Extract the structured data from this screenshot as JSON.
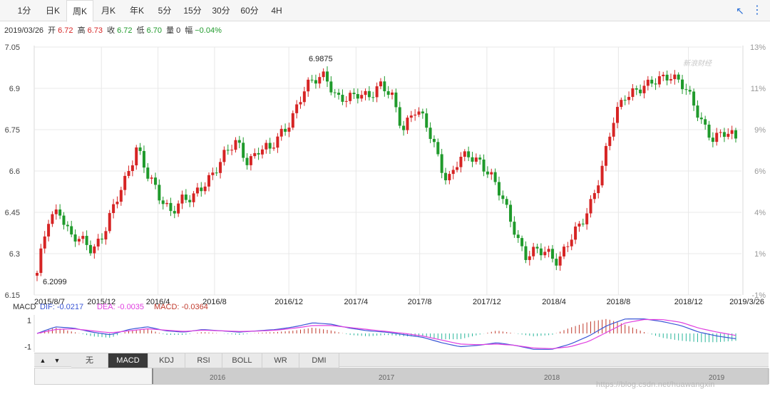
{
  "tabs": [
    {
      "label": "1分",
      "active": false
    },
    {
      "label": "日K",
      "active": false
    },
    {
      "label": "周K",
      "active": true
    },
    {
      "label": "月K",
      "active": false
    },
    {
      "label": "年K",
      "active": false
    },
    {
      "label": "5分",
      "active": false
    },
    {
      "label": "15分",
      "active": false
    },
    {
      "label": "30分",
      "active": false
    },
    {
      "label": "60分",
      "active": false
    },
    {
      "label": "4H",
      "active": false
    }
  ],
  "quote": {
    "date": "2019/03/26",
    "open_label": "开",
    "open": "6.72",
    "high_label": "高",
    "high": "6.73",
    "close_label": "收",
    "close": "6.72",
    "low_label": "低",
    "low": "6.70",
    "volume_label": "量",
    "volume": "0",
    "change_label": "幅",
    "change": "−0.04%"
  },
  "colors": {
    "up": "#d62424",
    "down": "#1f9a2b",
    "grid": "#e8e8e8",
    "dif": "#3a56d6",
    "dea": "#e03fe0",
    "macd_up": "#c0392b",
    "macd_down": "#28b59a"
  },
  "sina_mark": "新浪财经",
  "chart_data": {
    "type": "candlestick",
    "left_axis": {
      "ylim": [
        6.15,
        7.05
      ],
      "ticks": [
        "7.05",
        "6.9",
        "6.75",
        "6.6",
        "6.45",
        "6.3",
        "6.15"
      ]
    },
    "right_axis": {
      "ticks": [
        "13%",
        "11%",
        "9%",
        "6%",
        "4%",
        "1%",
        "-1%"
      ]
    },
    "x_ticks": [
      "2015/8/7",
      "2015/12",
      "2016/4",
      "2016/8",
      "2016/12",
      "2017/4",
      "2017/8",
      "2017/12",
      "2018/4",
      "2018/8",
      "2018/12",
      "2019/3/26"
    ],
    "x_tick_pos": [
      0.0,
      0.095,
      0.175,
      0.255,
      0.36,
      0.455,
      0.545,
      0.64,
      0.735,
      0.826,
      0.925,
      0.985
    ],
    "annotations": [
      {
        "label": "6.9875",
        "value": 6.9875
      },
      {
        "label": "6.2099",
        "value": 6.2099
      }
    ],
    "close_path": [
      6.22,
      6.42,
      6.47,
      6.36,
      6.34,
      6.32,
      6.38,
      6.47,
      6.57,
      6.7,
      6.58,
      6.5,
      6.46,
      6.5,
      6.49,
      6.55,
      6.61,
      6.66,
      6.7,
      6.64,
      6.68,
      6.67,
      6.74,
      6.8,
      6.88,
      6.93,
      6.96,
      6.86,
      6.85,
      6.89,
      6.88,
      6.9,
      6.87,
      6.76,
      6.82,
      6.77,
      6.68,
      6.56,
      6.63,
      6.66,
      6.64,
      6.57,
      6.49,
      6.4,
      6.29,
      6.3,
      6.31,
      6.28,
      6.34,
      6.4,
      6.5,
      6.62,
      6.78,
      6.88,
      6.9,
      6.9,
      6.93,
      6.96,
      6.92,
      6.85,
      6.78,
      6.72,
      6.73,
      6.72
    ],
    "macd": {
      "label": "MACD",
      "dif_label": "DIF:",
      "dif": "-0.0217",
      "dea_label": "DEA:",
      "dea": "-0.0035",
      "macd_label": "MACD:",
      "macd_value": "-0.0364",
      "y_ticks": [
        "1",
        "-1"
      ],
      "ylim": [
        -1.4,
        1.4
      ],
      "dif_path": [
        0.0,
        0.5,
        0.4,
        0.1,
        -0.1,
        0.3,
        0.5,
        0.2,
        0.1,
        0.3,
        0.2,
        0.1,
        0.2,
        0.3,
        0.5,
        0.8,
        0.7,
        0.4,
        0.2,
        0.1,
        -0.1,
        -0.3,
        -0.7,
        -1.0,
        -0.9,
        -0.7,
        -0.9,
        -1.2,
        -1.2,
        -0.8,
        -0.2,
        0.6,
        1.1,
        1.1,
        0.9,
        0.6,
        0.1,
        -0.2,
        -0.4
      ],
      "dea_path": [
        0.0,
        0.3,
        0.35,
        0.2,
        0.05,
        0.2,
        0.35,
        0.25,
        0.15,
        0.25,
        0.2,
        0.15,
        0.18,
        0.25,
        0.4,
        0.6,
        0.6,
        0.45,
        0.3,
        0.15,
        0.0,
        -0.2,
        -0.5,
        -0.8,
        -0.85,
        -0.8,
        -0.9,
        -1.1,
        -1.15,
        -1.0,
        -0.6,
        0.1,
        0.8,
        1.05,
        1.05,
        0.85,
        0.4,
        0.1,
        -0.15
      ]
    }
  },
  "indicators": {
    "arrows": [
      "▲",
      "▼"
    ],
    "tabs": [
      {
        "label": "无",
        "active": false
      },
      {
        "label": "MACD",
        "active": true
      },
      {
        "label": "KDJ",
        "active": false
      },
      {
        "label": "RSI",
        "active": false
      },
      {
        "label": "BOLL",
        "active": false
      },
      {
        "label": "WR",
        "active": false
      },
      {
        "label": "DMI",
        "active": false
      }
    ]
  },
  "scroller": {
    "years": [
      "2016",
      "2017",
      "2018",
      "2019"
    ]
  },
  "watermark": "https://blog.csdn.net/huawangxin"
}
